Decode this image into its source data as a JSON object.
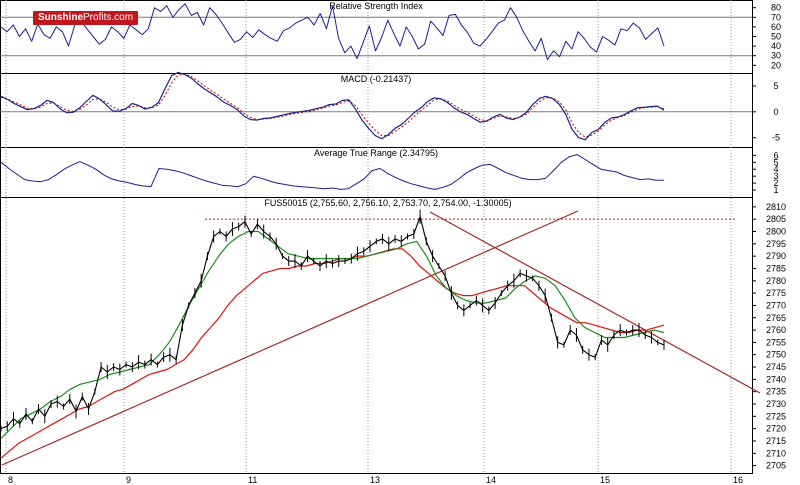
{
  "brand": {
    "part1": "Sunshine",
    "part2": "Profits.com"
  },
  "colors": {
    "price": "#000000",
    "ema_red": "#e01010",
    "ema_green": "#1a8c1a",
    "indicator": "#1f1f8c",
    "trend": "#a52a2a",
    "signal_red": "#c00000",
    "resistance": "#b22222",
    "grid": "#9a9a9a"
  },
  "chart_data": [
    {
      "type": "line",
      "title": "Relative Strength Index",
      "ylim": [
        12,
        88
      ],
      "yticks": [
        80,
        70,
        60,
        50,
        40,
        30,
        20
      ],
      "reference_lines": [
        70,
        30
      ],
      "series": [
        {
          "values": [
            60,
            55,
            62,
            50,
            58,
            45,
            63,
            52,
            48,
            60,
            55,
            40,
            62,
            66,
            58,
            50,
            42,
            47,
            60,
            55,
            48,
            62,
            57,
            52,
            58,
            80,
            76,
            82,
            70,
            78,
            84,
            72,
            75,
            62,
            80,
            73,
            64,
            54,
            44,
            47,
            55,
            49,
            57,
            52,
            48,
            45,
            56,
            59,
            64,
            67,
            70,
            62,
            74,
            58,
            82,
            48,
            33,
            40,
            27,
            44,
            61,
            35,
            49,
            67,
            53,
            40,
            60,
            50,
            37,
            42,
            66,
            59,
            51,
            72,
            73,
            62,
            54,
            43,
            40,
            47,
            55,
            64,
            67,
            80,
            70,
            56,
            45,
            35,
            48,
            26,
            35,
            29,
            45,
            37,
            55,
            48,
            39,
            34,
            50,
            46,
            41,
            58,
            56,
            64,
            59,
            47,
            53,
            59,
            40
          ]
        }
      ]
    },
    {
      "type": "line",
      "title": "MACD (-0.21437)",
      "ylim": [
        -6.8,
        7.5
      ],
      "yticks": [
        5,
        0,
        -5
      ],
      "reference_lines": [
        0
      ],
      "series": [
        {
          "values": [
            3.0,
            2.4,
            1.6,
            1.0,
            0.4,
            0.6,
            1.2,
            2.2,
            1.8,
            0.6,
            -0.2,
            -0.1,
            0.8,
            2.0,
            3.2,
            2.5,
            1.4,
            0.2,
            0.1,
            0.6,
            1.6,
            1.2,
            0.5,
            0.9,
            1.8,
            4.5,
            7.0,
            7.6,
            7.2,
            6.5,
            5.4,
            4.4,
            3.6,
            2.8,
            1.8,
            1.2,
            0.4,
            -0.8,
            -1.5,
            -1.6,
            -1.3,
            -1.2,
            -0.9,
            -0.6,
            -0.3,
            -0.1,
            0.1,
            0.3,
            0.6,
            0.9,
            1.4,
            1.5,
            2.2,
            2.3,
            0.5,
            -1.6,
            -3.2,
            -4.6,
            -5.2,
            -4.4,
            -3.2,
            -2.5,
            -1.3,
            -0.1,
            0.8,
            2.0,
            2.7,
            2.5,
            1.8,
            0.8,
            0.0,
            -0.5,
            -1.3,
            -2.0,
            -1.8,
            -1.0,
            -0.5,
            -1.2,
            -1.5,
            -1.0,
            -0.2,
            1.4,
            2.6,
            3.0,
            2.6,
            1.5,
            -0.4,
            -3.4,
            -5.0,
            -5.4,
            -4.0,
            -3.4,
            -2.0,
            -1.2,
            -1.0,
            -0.5,
            0.2,
            0.8,
            0.9,
            1.0,
            1.1,
            0.3
          ]
        },
        {
          "values": [
            2.8,
            2.5,
            1.9,
            1.3,
            0.7,
            0.6,
            0.9,
            1.6,
            1.7,
            1.0,
            0.3,
            0.1,
            0.5,
            1.3,
            2.4,
            2.5,
            1.9,
            0.9,
            0.4,
            0.5,
            1.0,
            1.1,
            0.8,
            0.8,
            1.3,
            3.2,
            5.6,
            7.1,
            7.3,
            6.8,
            6.0,
            5.0,
            4.1,
            3.3,
            2.4,
            1.6,
            0.8,
            -0.3,
            -1.1,
            -1.5,
            -1.4,
            -1.3,
            -1.1,
            -0.8,
            -0.5,
            -0.3,
            -0.1,
            0.1,
            0.4,
            0.7,
            1.1,
            1.3,
            1.8,
            2.1,
            1.2,
            -0.6,
            -2.2,
            -3.6,
            -4.6,
            -4.6,
            -3.8,
            -3.0,
            -2.0,
            -0.8,
            0.3,
            1.3,
            2.3,
            2.5,
            2.1,
            1.3,
            0.5,
            -0.1,
            -0.8,
            -1.5,
            -1.7,
            -1.3,
            -0.8,
            -1.0,
            -1.3,
            -1.1,
            -0.5,
            0.8,
            2.0,
            2.7,
            2.7,
            2.0,
            0.5,
            -2.2,
            -4.0,
            -4.9,
            -4.5,
            -3.7,
            -2.5,
            -1.6,
            -1.1,
            -0.7,
            -0.1,
            0.5,
            0.8,
            0.9,
            1.0,
            0.6
          ]
        }
      ]
    },
    {
      "type": "line",
      "title": "Average True Range (2.34795)",
      "ylim": [
        0,
        7.2
      ],
      "yticks": [
        6,
        5,
        4,
        3,
        2,
        1
      ],
      "series": [
        {
          "values": [
            5.0,
            4.1,
            3.3,
            2.5,
            2.3,
            2.2,
            2.5,
            3.2,
            4.0,
            4.6,
            5.1,
            4.6,
            4.0,
            3.2,
            2.6,
            2.3,
            2.1,
            1.8,
            1.6,
            1.5,
            4.1,
            4.0,
            3.8,
            3.5,
            3.1,
            2.7,
            2.3,
            2.0,
            1.7,
            1.6,
            1.5,
            1.9,
            3.0,
            2.7,
            2.3,
            2.0,
            1.8,
            1.6,
            1.5,
            1.4,
            1.3,
            1.2,
            1.3,
            1.1,
            1.2,
            1.9,
            2.6,
            3.8,
            4.1,
            3.4,
            2.8,
            2.3,
            1.9,
            1.6,
            1.3,
            1.1,
            1.4,
            1.8,
            2.6,
            3.5,
            4.1,
            4.6,
            4.7,
            4.1,
            3.5,
            3.1,
            2.7,
            2.5,
            2.5,
            2.7,
            3.8,
            5.0,
            5.8,
            6.1,
            5.4,
            4.7,
            4.0,
            3.8,
            3.6,
            3.1,
            2.8,
            2.5,
            2.6,
            2.4,
            2.4
          ]
        }
      ]
    },
    {
      "type": "line",
      "title": "FUS50015 (2,755.60, 2,756.10, 2,753.70, 2,754.00, -1.30005)",
      "ylim": [
        2702,
        2814
      ],
      "yticks": [
        2810,
        2805,
        2800,
        2795,
        2790,
        2785,
        2780,
        2775,
        2770,
        2765,
        2760,
        2755,
        2750,
        2745,
        2740,
        2735,
        2730,
        2725,
        2720,
        2715,
        2710,
        2705
      ],
      "x_labels": [
        "8",
        "9",
        "11",
        "13",
        "14",
        "15",
        "16"
      ],
      "series": [
        {
          "name": "price",
          "values": [
            2720,
            2721,
            2724,
            2722,
            2726,
            2723,
            2728,
            2725,
            2730,
            2731,
            2729,
            2732,
            2727,
            2733,
            2728,
            2735,
            2745,
            2743,
            2745,
            2744,
            2746,
            2745,
            2747,
            2746,
            2748,
            2746,
            2749,
            2750,
            2748,
            2762,
            2770,
            2775,
            2780,
            2790,
            2798,
            2800,
            2798,
            2801,
            2802,
            2804,
            2799,
            2803,
            2800,
            2798,
            2795,
            2790,
            2788,
            2788,
            2786,
            2790,
            2788,
            2786,
            2788,
            2787,
            2788,
            2788,
            2789,
            2791,
            2792,
            2794,
            2796,
            2797,
            2795,
            2797,
            2796,
            2798,
            2799,
            2806,
            2796,
            2790,
            2786,
            2782,
            2775,
            2770,
            2768,
            2770,
            2772,
            2770,
            2768,
            2771,
            2775,
            2778,
            2780,
            2783,
            2782,
            2781,
            2778,
            2774,
            2765,
            2755,
            2754,
            2760,
            2758,
            2752,
            2750,
            2749,
            2756,
            2754,
            2758,
            2760,
            2759,
            2760,
            2760,
            2758,
            2757,
            2755,
            2754
          ]
        },
        {
          "name": "ema-red",
          "values": [
            2708,
            2711,
            2714,
            2716,
            2718,
            2720,
            2722,
            2724,
            2726,
            2728,
            2729,
            2731,
            2733,
            2735,
            2736,
            2738,
            2740,
            2742,
            2743,
            2744,
            2746,
            2748,
            2752,
            2757,
            2761,
            2765,
            2770,
            2774,
            2777,
            2780,
            2783,
            2784,
            2785,
            2785,
            2786,
            2786,
            2787,
            2787,
            2788,
            2789,
            2789,
            2790,
            2790,
            2791,
            2792,
            2793,
            2793,
            2790,
            2786,
            2783,
            2780,
            2777,
            2775,
            2774,
            2774,
            2775,
            2776,
            2777,
            2778,
            2778,
            2778,
            2775,
            2772,
            2769,
            2767,
            2765,
            2763,
            2763,
            2762,
            2761,
            2760,
            2759,
            2759,
            2760,
            2760,
            2761,
            2762
          ]
        },
        {
          "name": "ema-green",
          "values": [
            2716,
            2720,
            2724,
            2726,
            2728,
            2731,
            2733,
            2736,
            2738,
            2739,
            2740,
            2742,
            2743,
            2744,
            2745,
            2746,
            2750,
            2755,
            2762,
            2770,
            2777,
            2784,
            2790,
            2795,
            2798,
            2800,
            2800,
            2797,
            2794,
            2791,
            2790,
            2789,
            2789,
            2789,
            2789,
            2789,
            2789,
            2790,
            2791,
            2792,
            2793,
            2795,
            2796,
            2790,
            2782,
            2777,
            2774,
            2772,
            2771,
            2771,
            2772,
            2773,
            2777,
            2780,
            2782,
            2781,
            2778,
            2772,
            2765,
            2761,
            2759,
            2757,
            2757,
            2757,
            2758,
            2759,
            2760,
            2759
          ]
        }
      ]
    }
  ]
}
